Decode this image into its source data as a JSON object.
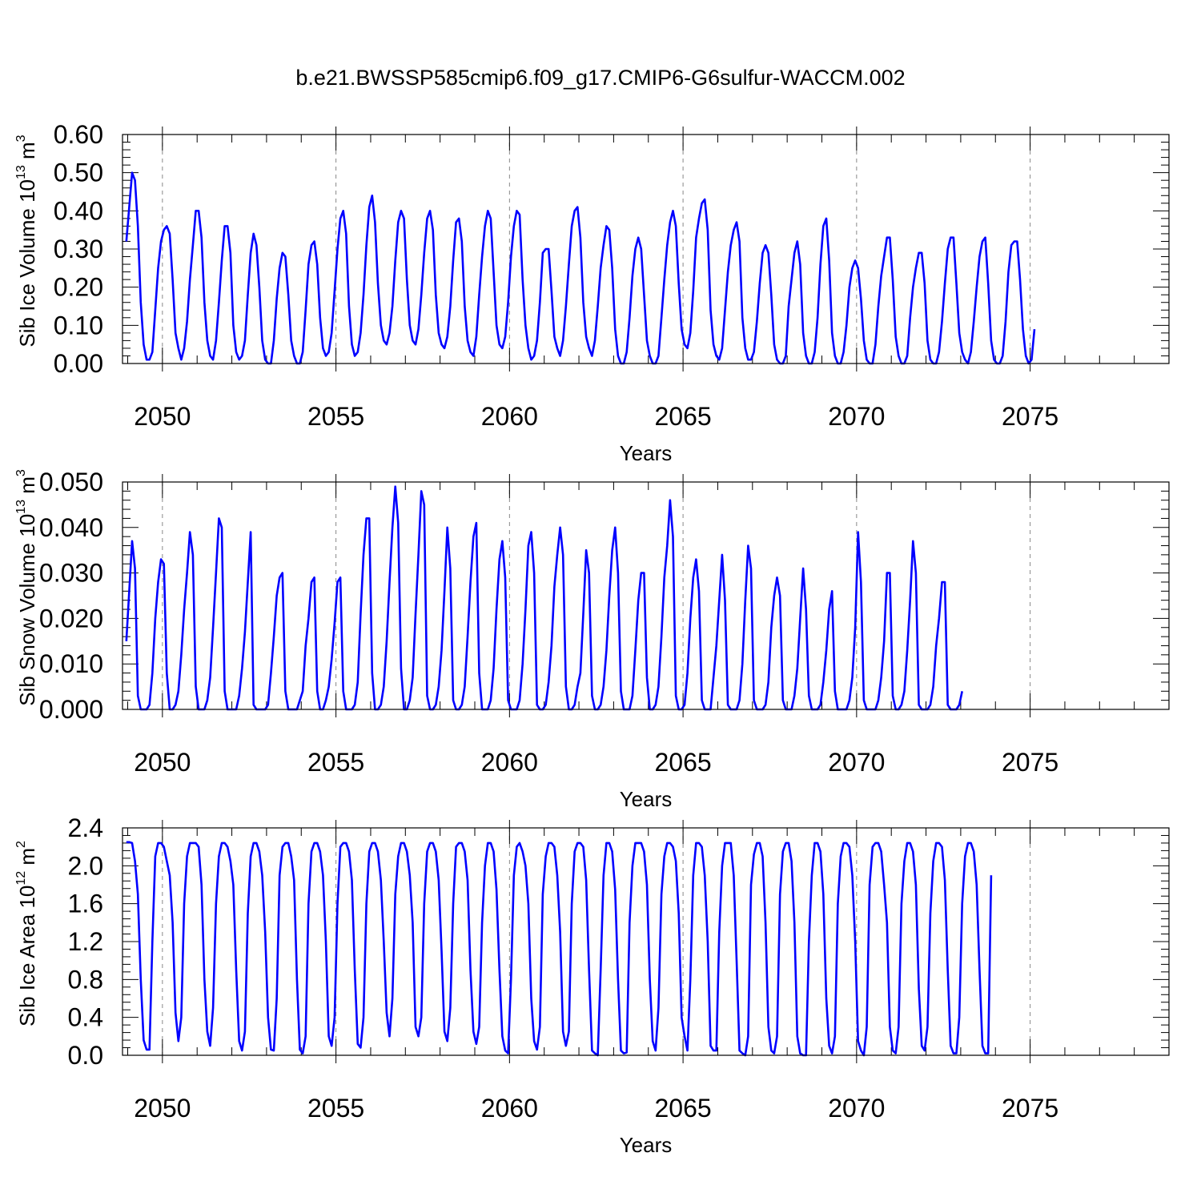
{
  "title": "b.e21.BWSSP585cmip6.f09_g17.CMIP6-G6sulfur-WACCM.002",
  "colors": {
    "series": "#0000ff",
    "grid": "#888888",
    "axis": "#000000"
  },
  "chart_data": [
    {
      "type": "line",
      "ylabel": {
        "text": "Sib Ice Volume 10",
        "exp": "13",
        "unit": " m",
        "unit_exp": "3"
      },
      "xlabel": "Years",
      "xlim": [
        2048.85,
        2079.0
      ],
      "ylim": [
        0.0,
        0.6
      ],
      "yticks": [
        "0.00",
        "0.10",
        "0.20",
        "0.30",
        "0.40",
        "0.50",
        "0.60"
      ],
      "ytick_values": [
        0,
        0.1,
        0.2,
        0.3,
        0.4,
        0.5,
        0.6
      ],
      "xticks": [
        "2050",
        "2055",
        "2060",
        "2065",
        "2070",
        "2075"
      ],
      "xtick_values": [
        2050,
        2055,
        2060,
        2065,
        2070,
        2075
      ],
      "grid": "vertical dashed at year ticks",
      "series": [
        {
          "x_start": 2048.96,
          "x_step": 0.08333,
          "values": [
            0.32,
            0.41,
            0.5,
            0.48,
            0.36,
            0.16,
            0.05,
            0.01,
            0.01,
            0.03,
            0.14,
            0.25,
            0.32,
            0.35,
            0.36,
            0.34,
            0.22,
            0.08,
            0.04,
            0.01,
            0.04,
            0.11,
            0.22,
            0.31,
            0.4,
            0.4,
            0.33,
            0.16,
            0.06,
            0.02,
            0.01,
            0.06,
            0.16,
            0.27,
            0.36,
            0.36,
            0.29,
            0.1,
            0.03,
            0.01,
            0.02,
            0.06,
            0.18,
            0.29,
            0.34,
            0.31,
            0.2,
            0.06,
            0.01,
            0.0,
            0.0,
            0.06,
            0.17,
            0.25,
            0.29,
            0.28,
            0.18,
            0.06,
            0.02,
            0.0,
            0.0,
            0.03,
            0.14,
            0.26,
            0.31,
            0.32,
            0.26,
            0.12,
            0.04,
            0.02,
            0.03,
            0.08,
            0.19,
            0.3,
            0.38,
            0.4,
            0.34,
            0.15,
            0.05,
            0.02,
            0.03,
            0.08,
            0.18,
            0.31,
            0.41,
            0.44,
            0.37,
            0.21,
            0.1,
            0.06,
            0.05,
            0.08,
            0.15,
            0.27,
            0.37,
            0.4,
            0.38,
            0.22,
            0.1,
            0.06,
            0.05,
            0.09,
            0.18,
            0.29,
            0.38,
            0.4,
            0.35,
            0.18,
            0.08,
            0.05,
            0.04,
            0.07,
            0.15,
            0.27,
            0.37,
            0.38,
            0.32,
            0.15,
            0.06,
            0.03,
            0.02,
            0.07,
            0.18,
            0.28,
            0.36,
            0.4,
            0.38,
            0.24,
            0.1,
            0.05,
            0.04,
            0.07,
            0.16,
            0.28,
            0.36,
            0.4,
            0.39,
            0.22,
            0.1,
            0.04,
            0.01,
            0.02,
            0.06,
            0.16,
            0.29,
            0.3,
            0.3,
            0.19,
            0.07,
            0.04,
            0.02,
            0.06,
            0.15,
            0.26,
            0.36,
            0.4,
            0.41,
            0.33,
            0.16,
            0.07,
            0.04,
            0.02,
            0.06,
            0.15,
            0.25,
            0.31,
            0.36,
            0.35,
            0.25,
            0.09,
            0.02,
            0.0,
            0.0,
            0.03,
            0.12,
            0.23,
            0.3,
            0.33,
            0.3,
            0.18,
            0.06,
            0.02,
            0.0,
            0.0,
            0.02,
            0.12,
            0.22,
            0.31,
            0.37,
            0.4,
            0.36,
            0.21,
            0.09,
            0.05,
            0.04,
            0.08,
            0.19,
            0.33,
            0.38,
            0.42,
            0.43,
            0.35,
            0.14,
            0.05,
            0.02,
            0.01,
            0.04,
            0.14,
            0.24,
            0.31,
            0.35,
            0.37,
            0.32,
            0.12,
            0.04,
            0.01,
            0.01,
            0.03,
            0.11,
            0.21,
            0.29,
            0.31,
            0.29,
            0.18,
            0.05,
            0.01,
            0.0,
            0.0,
            0.02,
            0.15,
            0.22,
            0.29,
            0.32,
            0.26,
            0.08,
            0.02,
            0.0,
            0.0,
            0.03,
            0.12,
            0.26,
            0.36,
            0.38,
            0.27,
            0.08,
            0.02,
            0.0,
            0.0,
            0.03,
            0.1,
            0.2,
            0.25,
            0.27,
            0.25,
            0.17,
            0.06,
            0.01,
            0.0,
            0.0,
            0.05,
            0.15,
            0.23,
            0.28,
            0.33,
            0.33,
            0.22,
            0.07,
            0.02,
            0.0,
            0.0,
            0.02,
            0.12,
            0.2,
            0.25,
            0.29,
            0.29,
            0.21,
            0.06,
            0.01,
            0.0,
            0.0,
            0.03,
            0.11,
            0.21,
            0.3,
            0.33,
            0.33,
            0.21,
            0.08,
            0.03,
            0.01,
            0.0,
            0.03,
            0.11,
            0.2,
            0.28,
            0.32,
            0.33,
            0.21,
            0.06,
            0.01,
            0.0,
            0.0,
            0.02,
            0.11,
            0.24,
            0.31,
            0.32,
            0.32,
            0.22,
            0.09,
            0.02,
            0.0,
            0.01,
            0.09
          ]
        }
      ]
    },
    {
      "type": "line",
      "ylabel": {
        "text": "Sib Snow Volume 10",
        "exp": "13",
        "unit": " m",
        "unit_exp": "3"
      },
      "xlabel": "Years",
      "xlim": [
        2048.85,
        2079.0
      ],
      "ylim": [
        0.0,
        0.05
      ],
      "yticks": [
        "0.000",
        "0.010",
        "0.020",
        "0.030",
        "0.040",
        "0.050"
      ],
      "ytick_values": [
        0,
        0.01,
        0.02,
        0.03,
        0.04,
        0.05
      ],
      "xticks": [
        "2050",
        "2055",
        "2060",
        "2065",
        "2070",
        "2075"
      ],
      "xtick_values": [
        2050,
        2055,
        2060,
        2065,
        2070,
        2075
      ],
      "grid": "vertical dashed at year ticks",
      "series": [
        {
          "x_start": 2048.96,
          "x_step": 0.08333,
          "values": [
            0.015,
            0.026,
            0.037,
            0.031,
            0.003,
            0.0,
            0.0,
            0.0,
            0.001,
            0.008,
            0.02,
            0.028,
            0.033,
            0.032,
            0.008,
            0.0,
            0.0,
            0.001,
            0.004,
            0.012,
            0.022,
            0.03,
            0.039,
            0.034,
            0.005,
            0.0,
            0.0,
            0.0,
            0.002,
            0.007,
            0.018,
            0.03,
            0.042,
            0.04,
            0.004,
            0.0,
            0.0,
            0.0,
            0.0,
            0.003,
            0.009,
            0.017,
            0.028,
            0.039,
            0.001,
            0.0,
            0.0,
            0.0,
            0.0,
            0.001,
            0.008,
            0.016,
            0.025,
            0.029,
            0.03,
            0.004,
            0.0,
            0.0,
            0.0,
            0.0,
            0.002,
            0.004,
            0.014,
            0.02,
            0.028,
            0.029,
            0.004,
            0.0,
            0.0,
            0.002,
            0.005,
            0.011,
            0.019,
            0.028,
            0.029,
            0.004,
            0.0,
            0.0,
            0.0,
            0.001,
            0.006,
            0.021,
            0.034,
            0.042,
            0.042,
            0.008,
            0.0,
            0.0,
            0.001,
            0.005,
            0.015,
            0.028,
            0.04,
            0.049,
            0.041,
            0.009,
            0.0,
            0.0,
            0.002,
            0.007,
            0.021,
            0.034,
            0.048,
            0.045,
            0.003,
            0.0,
            0.0,
            0.001,
            0.005,
            0.013,
            0.026,
            0.04,
            0.031,
            0.002,
            0.0,
            0.0,
            0.001,
            0.005,
            0.016,
            0.028,
            0.038,
            0.041,
            0.008,
            0.0,
            0.0,
            0.0,
            0.002,
            0.009,
            0.022,
            0.033,
            0.037,
            0.029,
            0.002,
            0.0,
            0.0,
            0.0,
            0.002,
            0.01,
            0.022,
            0.036,
            0.039,
            0.03,
            0.001,
            0.0,
            0.0,
            0.001,
            0.006,
            0.014,
            0.027,
            0.034,
            0.04,
            0.034,
            0.005,
            0.0,
            0.0,
            0.001,
            0.005,
            0.008,
            0.021,
            0.035,
            0.03,
            0.003,
            0.0,
            0.0,
            0.001,
            0.005,
            0.013,
            0.025,
            0.035,
            0.04,
            0.03,
            0.004,
            0.0,
            0.0,
            0.0,
            0.003,
            0.013,
            0.024,
            0.03,
            0.03,
            0.007,
            0.0,
            0.0,
            0.001,
            0.005,
            0.016,
            0.029,
            0.036,
            0.046,
            0.038,
            0.003,
            0.0,
            0.0,
            0.001,
            0.008,
            0.02,
            0.029,
            0.033,
            0.026,
            0.002,
            0.0,
            0.0,
            0.0,
            0.007,
            0.014,
            0.024,
            0.034,
            0.024,
            0.001,
            0.0,
            0.0,
            0.0,
            0.002,
            0.01,
            0.024,
            0.036,
            0.031,
            0.002,
            0.0,
            0.0,
            0.0,
            0.001,
            0.006,
            0.018,
            0.025,
            0.029,
            0.025,
            0.002,
            0.0,
            0.0,
            0.0,
            0.003,
            0.009,
            0.02,
            0.031,
            0.022,
            0.003,
            0.0,
            0.0,
            0.0,
            0.001,
            0.006,
            0.013,
            0.022,
            0.026,
            0.004,
            0.0,
            0.0,
            0.0,
            0.0,
            0.002,
            0.007,
            0.018,
            0.039,
            0.028,
            0.002,
            0.0,
            0.0,
            0.0,
            0.0,
            0.002,
            0.007,
            0.015,
            0.03,
            0.03,
            0.003,
            0.0,
            0.0,
            0.001,
            0.004,
            0.013,
            0.024,
            0.037,
            0.03,
            0.001,
            0.0,
            0.0,
            0.0,
            0.001,
            0.005,
            0.014,
            0.02,
            0.028,
            0.028,
            0.001,
            0.0,
            0.0,
            0.0,
            0.001,
            0.004
          ]
        }
      ]
    },
    {
      "type": "line",
      "ylabel": {
        "text": "Sib Ice Area 10",
        "exp": "12",
        "unit": " m",
        "unit_exp": "2"
      },
      "xlabel": "Years",
      "xlim": [
        2048.85,
        2079.0
      ],
      "ylim": [
        0.0,
        2.4
      ],
      "yticks": [
        "0.0",
        "0.4",
        "0.8",
        "1.2",
        "1.6",
        "2.0",
        "2.4"
      ],
      "ytick_values": [
        0,
        0.4,
        0.8,
        1.2,
        1.6,
        2.0,
        2.4
      ],
      "xticks": [
        "2050",
        "2055",
        "2060",
        "2065",
        "2070",
        "2075"
      ],
      "xtick_values": [
        2050,
        2055,
        2060,
        2065,
        2070,
        2075
      ],
      "grid": "vertical dashed at year ticks",
      "series": [
        {
          "x_start": 2048.96,
          "x_step": 0.08333,
          "values": [
            2.25,
            2.25,
            2.24,
            2.05,
            1.7,
            0.8,
            0.16,
            0.06,
            0.06,
            1.2,
            2.1,
            2.24,
            2.24,
            2.2,
            2.05,
            1.9,
            1.4,
            0.45,
            0.15,
            0.4,
            1.6,
            2.1,
            2.24,
            2.24,
            2.24,
            2.2,
            1.8,
            0.8,
            0.25,
            0.1,
            0.5,
            1.6,
            2.1,
            2.24,
            2.24,
            2.2,
            2.05,
            1.8,
            0.9,
            0.15,
            0.05,
            0.25,
            1.5,
            2.1,
            2.24,
            2.24,
            2.15,
            1.9,
            1.3,
            0.4,
            0.06,
            0.05,
            0.6,
            1.9,
            2.2,
            2.24,
            2.24,
            2.1,
            1.85,
            0.8,
            0.06,
            0.02,
            0.2,
            1.6,
            2.15,
            2.24,
            2.24,
            2.15,
            1.9,
            1.2,
            0.2,
            0.1,
            0.4,
            1.6,
            2.2,
            2.24,
            2.24,
            2.15,
            1.85,
            0.9,
            0.12,
            0.08,
            0.4,
            1.6,
            2.15,
            2.24,
            2.24,
            2.15,
            1.85,
            1.2,
            0.45,
            0.2,
            0.6,
            1.7,
            2.1,
            2.24,
            2.24,
            2.15,
            1.9,
            1.4,
            0.3,
            0.2,
            0.4,
            1.6,
            2.15,
            2.24,
            2.24,
            2.15,
            1.85,
            1.1,
            0.25,
            0.15,
            0.5,
            1.6,
            2.2,
            2.24,
            2.24,
            2.15,
            1.85,
            0.9,
            0.25,
            0.12,
            0.3,
            1.4,
            2.0,
            2.24,
            2.24,
            2.15,
            1.75,
            0.9,
            0.2,
            0.05,
            0.02,
            0.8,
            1.9,
            2.2,
            2.24,
            2.15,
            2.0,
            1.6,
            0.6,
            0.15,
            0.06,
            0.3,
            1.7,
            2.1,
            2.24,
            2.24,
            2.2,
            1.9,
            1.3,
            0.25,
            0.1,
            0.25,
            1.6,
            2.15,
            2.24,
            2.24,
            2.2,
            1.85,
            0.9,
            0.05,
            0.02,
            0.0,
            0.9,
            1.9,
            2.24,
            2.24,
            2.15,
            1.75,
            0.8,
            0.05,
            0.02,
            0.03,
            1.4,
            2.0,
            2.24,
            2.24,
            2.24,
            2.15,
            1.8,
            0.8,
            0.15,
            0.05,
            0.5,
            1.7,
            2.1,
            2.24,
            2.24,
            2.2,
            2.05,
            1.5,
            0.4,
            0.2,
            0.05,
            0.8,
            1.9,
            2.24,
            2.24,
            2.2,
            1.9,
            1.2,
            0.1,
            0.05,
            0.05,
            1.3,
            2.0,
            2.24,
            2.24,
            2.24,
            1.9,
            1.0,
            0.05,
            0.02,
            0.0,
            0.2,
            1.8,
            2.12,
            2.24,
            2.24,
            2.1,
            1.4,
            0.3,
            0.05,
            0.02,
            0.2,
            1.7,
            2.15,
            2.24,
            2.24,
            2.05,
            1.4,
            0.2,
            0.02,
            0.0,
            0.0,
            1.2,
            1.9,
            2.24,
            2.24,
            2.15,
            1.7,
            0.6,
            0.1,
            0.02,
            0.2,
            1.6,
            2.1,
            2.24,
            2.24,
            2.2,
            1.9,
            1.2,
            0.15,
            0.05,
            0.0,
            0.3,
            1.8,
            2.2,
            2.24,
            2.24,
            2.15,
            1.8,
            1.4,
            0.3,
            0.05,
            0.02,
            0.3,
            1.6,
            2.05,
            2.24,
            2.24,
            2.15,
            1.8,
            0.7,
            0.1,
            0.05,
            0.3,
            1.5,
            2.05,
            2.24,
            2.24,
            2.2,
            1.85,
            0.9,
            0.1,
            0.02,
            0.02,
            0.4,
            1.6,
            2.1,
            2.24,
            2.24,
            2.15,
            1.8,
            0.9,
            0.1,
            0.02,
            0.02,
            1.9
          ]
        }
      ]
    }
  ]
}
